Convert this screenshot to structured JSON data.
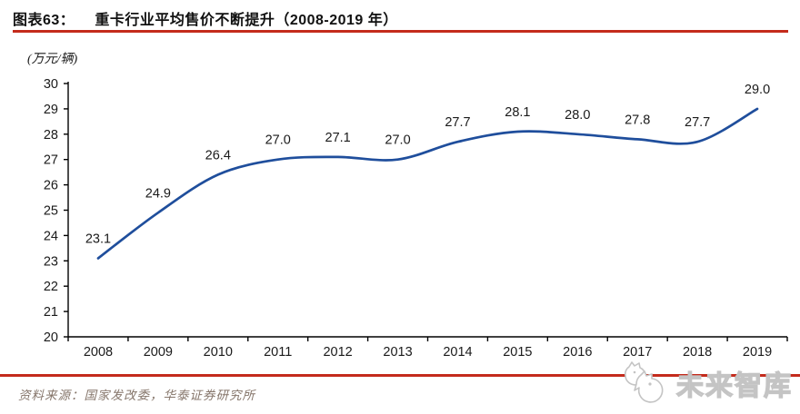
{
  "header": {
    "figure_label": "图表63：",
    "title": "重卡行业平均售价不断提升（2008-2019 年）"
  },
  "chart_data": {
    "type": "line",
    "title": "重卡行业平均售价不断提升（2008-2019 年）",
    "unit_label": "(万元/辆)",
    "categories": [
      "2008",
      "2009",
      "2010",
      "2011",
      "2012",
      "2013",
      "2014",
      "2015",
      "2016",
      "2017",
      "2018",
      "2019"
    ],
    "values": [
      23.1,
      24.9,
      26.4,
      27.0,
      27.1,
      27.0,
      27.7,
      28.1,
      28.0,
      27.8,
      27.7,
      29.0
    ],
    "xlabel": "",
    "ylabel": "",
    "ylim": [
      20,
      30
    ],
    "ytick_step": 1,
    "grid": false,
    "legend": "none",
    "data_labels": true,
    "smooth": true
  },
  "footer": {
    "source": "资料来源：国家发改委，华泰证券研究所",
    "logo_text": "未来智库"
  },
  "icons": {
    "logo_icon": "whale-creature-outline"
  },
  "colors": {
    "accent_red": "#c42b1c",
    "line_blue": "#1f4e9c",
    "axis_black": "#000000",
    "tick_text": "#1a1a1a",
    "data_label_text": "#1a1a1a",
    "source_text": "#86766b",
    "logo_gray": "#c4c4c4"
  }
}
